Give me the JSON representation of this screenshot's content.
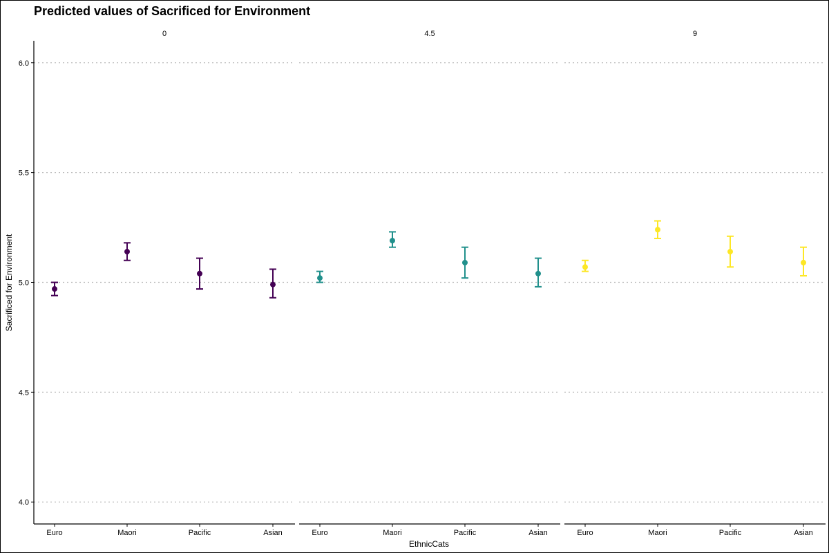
{
  "chart_data": {
    "type": "scatter",
    "title": "Predicted values of Sacrificed for Environment",
    "xlabel": "EthnicCats",
    "ylabel": "Sacrificed for Environment",
    "ylim": [
      3.9,
      6.1
    ],
    "yticks": [
      "4.0",
      "4.5",
      "5.0",
      "5.5",
      "6.0"
    ],
    "grid": "horizontal dotted",
    "categories": [
      "Euro",
      "Maori",
      "Pacific",
      "Asian"
    ],
    "panels": [
      {
        "label": "0",
        "color": "#440154",
        "points": [
          {
            "category": "Euro",
            "y": 4.97,
            "low": 4.94,
            "high": 5.0
          },
          {
            "category": "Maori",
            "y": 5.14,
            "low": 5.1,
            "high": 5.18
          },
          {
            "category": "Pacific",
            "y": 5.04,
            "low": 4.97,
            "high": 5.11
          },
          {
            "category": "Asian",
            "y": 4.99,
            "low": 4.93,
            "high": 5.06
          }
        ]
      },
      {
        "label": "4.5",
        "color": "#21908C",
        "points": [
          {
            "category": "Euro",
            "y": 5.02,
            "low": 5.0,
            "high": 5.05
          },
          {
            "category": "Maori",
            "y": 5.19,
            "low": 5.16,
            "high": 5.23
          },
          {
            "category": "Pacific",
            "y": 5.09,
            "low": 5.02,
            "high": 5.16
          },
          {
            "category": "Asian",
            "y": 5.04,
            "low": 4.98,
            "high": 5.11
          }
        ]
      },
      {
        "label": "9",
        "color": "#FDE725",
        "points": [
          {
            "category": "Euro",
            "y": 5.07,
            "low": 5.05,
            "high": 5.1
          },
          {
            "category": "Maori",
            "y": 5.24,
            "low": 5.2,
            "high": 5.28
          },
          {
            "category": "Pacific",
            "y": 5.14,
            "low": 5.07,
            "high": 5.21
          },
          {
            "category": "Asian",
            "y": 5.09,
            "low": 5.03,
            "high": 5.16
          }
        ]
      }
    ]
  }
}
